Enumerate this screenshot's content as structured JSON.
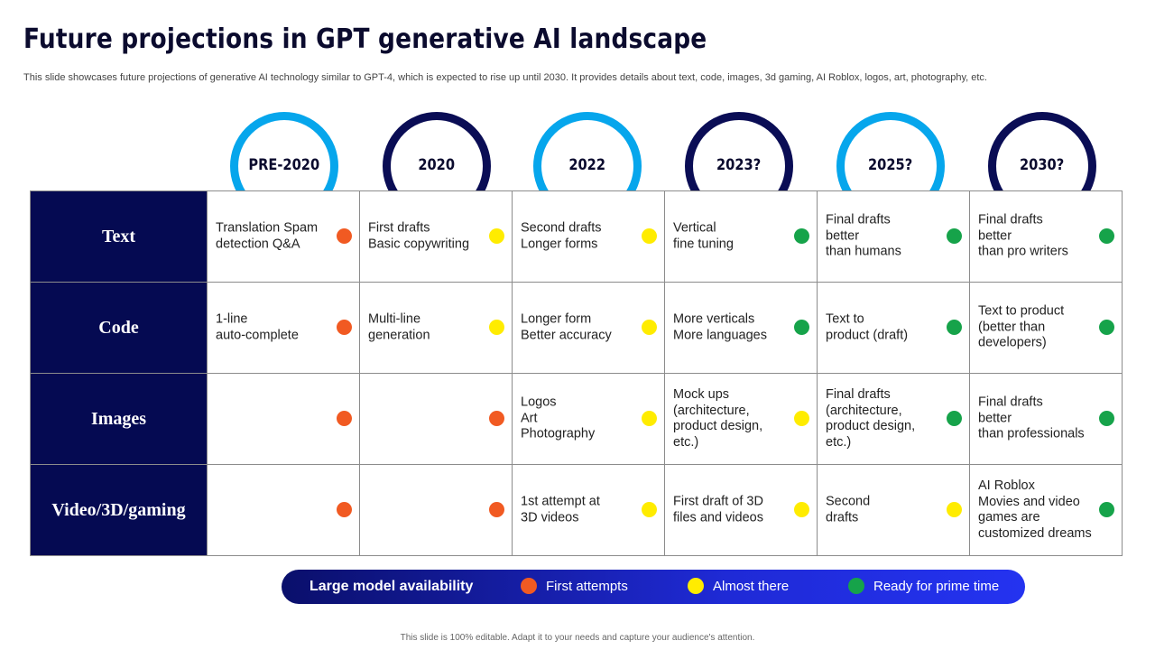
{
  "colors": {
    "first_attempts": "#f15a22",
    "almost_there": "#ffec00",
    "ready": "#16a34a",
    "ring_light": "#06a6ec",
    "ring_dark": "#0a0d55",
    "row_header_bg": "#050a52"
  },
  "title": "Future projections in GPT generative AI landscape",
  "subtitle": "This slide showcases future projections of generative AI technology similar to GPT-4, which is expected to rise up until 2030. It provides details about text, code, images, 3d gaming, AI Roblox, logos, art, photography, etc.",
  "years": [
    "PRE-2020",
    "2020",
    "2022",
    "2023?",
    "2025?",
    "2030?"
  ],
  "rows": [
    {
      "label": "Text",
      "cells": [
        {
          "text": "Translation Spam\ndetection Q&A",
          "status": "first_attempts"
        },
        {
          "text": "First drafts\nBasic copywriting",
          "status": "almost_there"
        },
        {
          "text": "Second drafts\nLonger forms",
          "status": "almost_there"
        },
        {
          "text": "Vertical\nfine tuning",
          "status": "ready"
        },
        {
          "text": "Final drafts\nbetter\nthan humans",
          "status": "ready"
        },
        {
          "text": "Final drafts\nbetter\nthan pro writers",
          "status": "ready"
        }
      ]
    },
    {
      "label": "Code",
      "cells": [
        {
          "text": "1-line\nauto-complete",
          "status": "first_attempts"
        },
        {
          "text": "Multi-line\ngeneration",
          "status": "almost_there"
        },
        {
          "text": "Longer form\nBetter accuracy",
          "status": "almost_there"
        },
        {
          "text": "More verticals\nMore languages",
          "status": "ready"
        },
        {
          "text": "Text to\nproduct (draft)",
          "status": "ready"
        },
        {
          "text": "Text to product\n(better than\ndevelopers)",
          "status": "ready"
        }
      ]
    },
    {
      "label": "Images",
      "cells": [
        {
          "text": "",
          "status": "first_attempts"
        },
        {
          "text": "",
          "status": "first_attempts"
        },
        {
          "text": "Logos\nArt\nPhotography",
          "status": "almost_there"
        },
        {
          "text": "Mock ups\n(architecture,\nproduct design, etc.)",
          "status": "almost_there"
        },
        {
          "text": "Final drafts\n(architecture,\nproduct design, etc.)",
          "status": "ready"
        },
        {
          "text": "Final drafts\nbetter\nthan professionals",
          "status": "ready"
        }
      ]
    },
    {
      "label": "Video/3D/gaming",
      "cells": [
        {
          "text": "",
          "status": "first_attempts"
        },
        {
          "text": "",
          "status": "first_attempts"
        },
        {
          "text": "1st attempt at\n3D videos",
          "status": "almost_there"
        },
        {
          "text": "First draft of 3D\nfiles and videos",
          "status": "almost_there"
        },
        {
          "text": "Second\ndrafts",
          "status": "almost_there"
        },
        {
          "text": "AI Roblox\nMovies and video\ngames are\ncustomized dreams",
          "status": "ready"
        }
      ]
    }
  ],
  "legend": {
    "title": "Large model availability",
    "items": [
      {
        "label": "First attempts",
        "status": "first_attempts"
      },
      {
        "label": "Almost there",
        "status": "almost_there"
      },
      {
        "label": "Ready for prime time",
        "status": "ready"
      }
    ]
  },
  "footer": "This slide is 100% editable. Adapt it to your needs and capture your audience's attention."
}
